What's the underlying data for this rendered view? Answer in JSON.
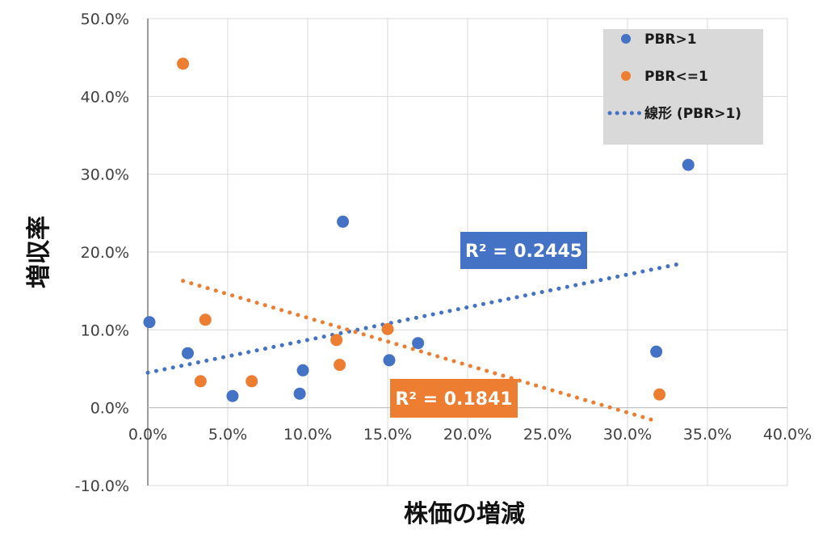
{
  "colors": {
    "pbr_gt1": "#4472C4",
    "pbr_le1": "#ED7D31",
    "grid": "#D9D9D9",
    "legend_bg": "#D9D9D9"
  },
  "chart_data": {
    "type": "scatter",
    "xlabel": "株価の増減",
    "ylabel": "増収率",
    "xlim": [
      0,
      0.4
    ],
    "ylim": [
      -0.1,
      0.5
    ],
    "x_ticks": [
      0,
      0.05,
      0.1,
      0.15,
      0.2,
      0.25,
      0.3,
      0.35,
      0.4
    ],
    "y_ticks": [
      -0.1,
      0,
      0.1,
      0.2,
      0.3,
      0.4,
      0.5
    ],
    "x_tick_labels": [
      "0.0%",
      "5.0%",
      "10.0%",
      "15.0%",
      "20.0%",
      "25.0%",
      "30.0%",
      "35.0%",
      "40.0%"
    ],
    "y_tick_labels": [
      "-10.0%",
      "0.0%",
      "10.0%",
      "20.0%",
      "30.0%",
      "40.0%",
      "50.0%"
    ],
    "grid": true,
    "legend_position": "top-right",
    "series": [
      {
        "name": "PBR>1",
        "color": "#4472C4",
        "points": [
          [
            0.001,
            0.11
          ],
          [
            0.025,
            0.07
          ],
          [
            0.053,
            0.015
          ],
          [
            0.095,
            0.018
          ],
          [
            0.097,
            0.048
          ],
          [
            0.122,
            0.239
          ],
          [
            0.151,
            0.061
          ],
          [
            0.169,
            0.083
          ],
          [
            0.318,
            0.072
          ],
          [
            0.338,
            0.312
          ]
        ],
        "trendline": {
          "label": "線形 (PBR>1)",
          "x_range": [
            0.0,
            0.333
          ],
          "y_range": [
            0.045,
            0.185
          ],
          "r2_label": "R² = 0.2445"
        }
      },
      {
        "name": "PBR<=1",
        "color": "#ED7D31",
        "points": [
          [
            0.022,
            0.442
          ],
          [
            0.033,
            0.034
          ],
          [
            0.036,
            0.113
          ],
          [
            0.065,
            0.034
          ],
          [
            0.118,
            0.087
          ],
          [
            0.12,
            0.055
          ],
          [
            0.15,
            0.101
          ],
          [
            0.32,
            0.017
          ]
        ],
        "trendline": {
          "x_range": [
            0.022,
            0.316
          ],
          "y_range": [
            0.163,
            -0.016
          ],
          "r2_label": "R² = 0.1841"
        }
      }
    ]
  }
}
